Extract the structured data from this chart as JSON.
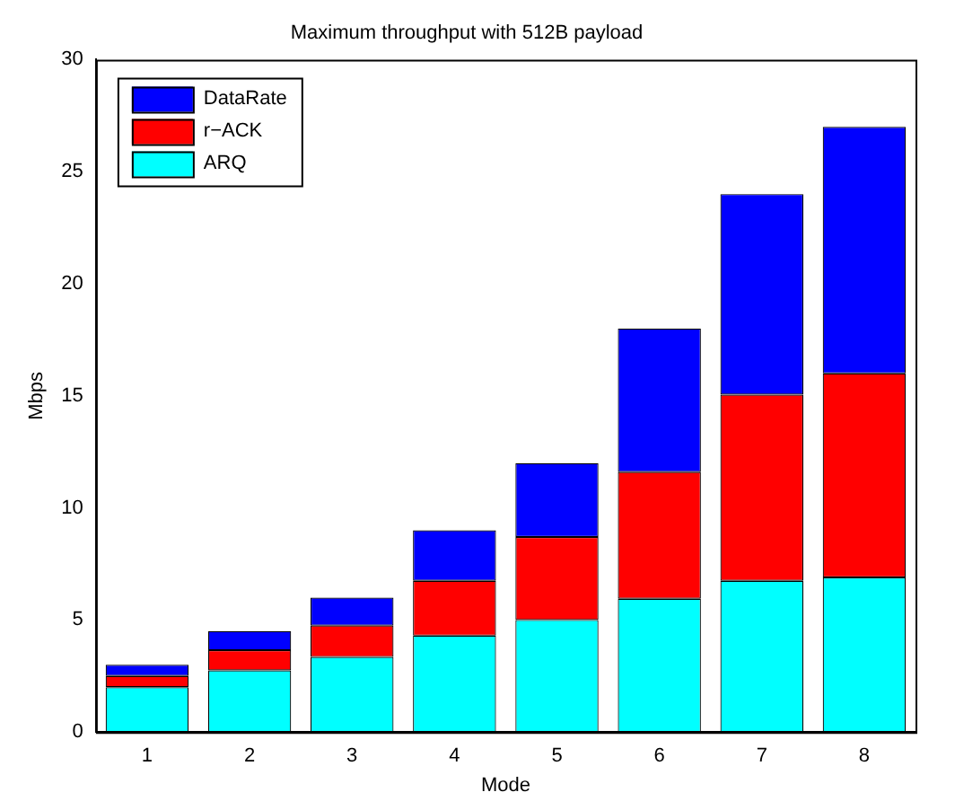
{
  "chart_data": {
    "type": "bar",
    "title": "Maximum throughput with 512B payload",
    "xlabel": "Mode",
    "ylabel": "Mbps",
    "categories": [
      "1",
      "2",
      "3",
      "4",
      "5",
      "6",
      "7",
      "8"
    ],
    "stacked": true,
    "series": [
      {
        "name": "ARQ",
        "color": "#00ffff",
        "values": [
          2.0,
          2.75,
          3.35,
          4.3,
          5.0,
          5.95,
          6.75,
          6.9
        ]
      },
      {
        "name": "r−ACK",
        "color": "#ff0000",
        "values": [
          0.5,
          0.9,
          1.4,
          2.45,
          3.7,
          5.65,
          8.3,
          9.1
        ]
      },
      {
        "name": "DataRate",
        "color": "#0000ff",
        "values": [
          0.5,
          0.85,
          1.25,
          2.25,
          3.3,
          6.4,
          8.95,
          11.0
        ]
      }
    ],
    "ylim": [
      0,
      30
    ],
    "yticks": [
      0,
      5,
      10,
      15,
      20,
      25,
      30
    ],
    "grid": false,
    "legend": "top left"
  }
}
